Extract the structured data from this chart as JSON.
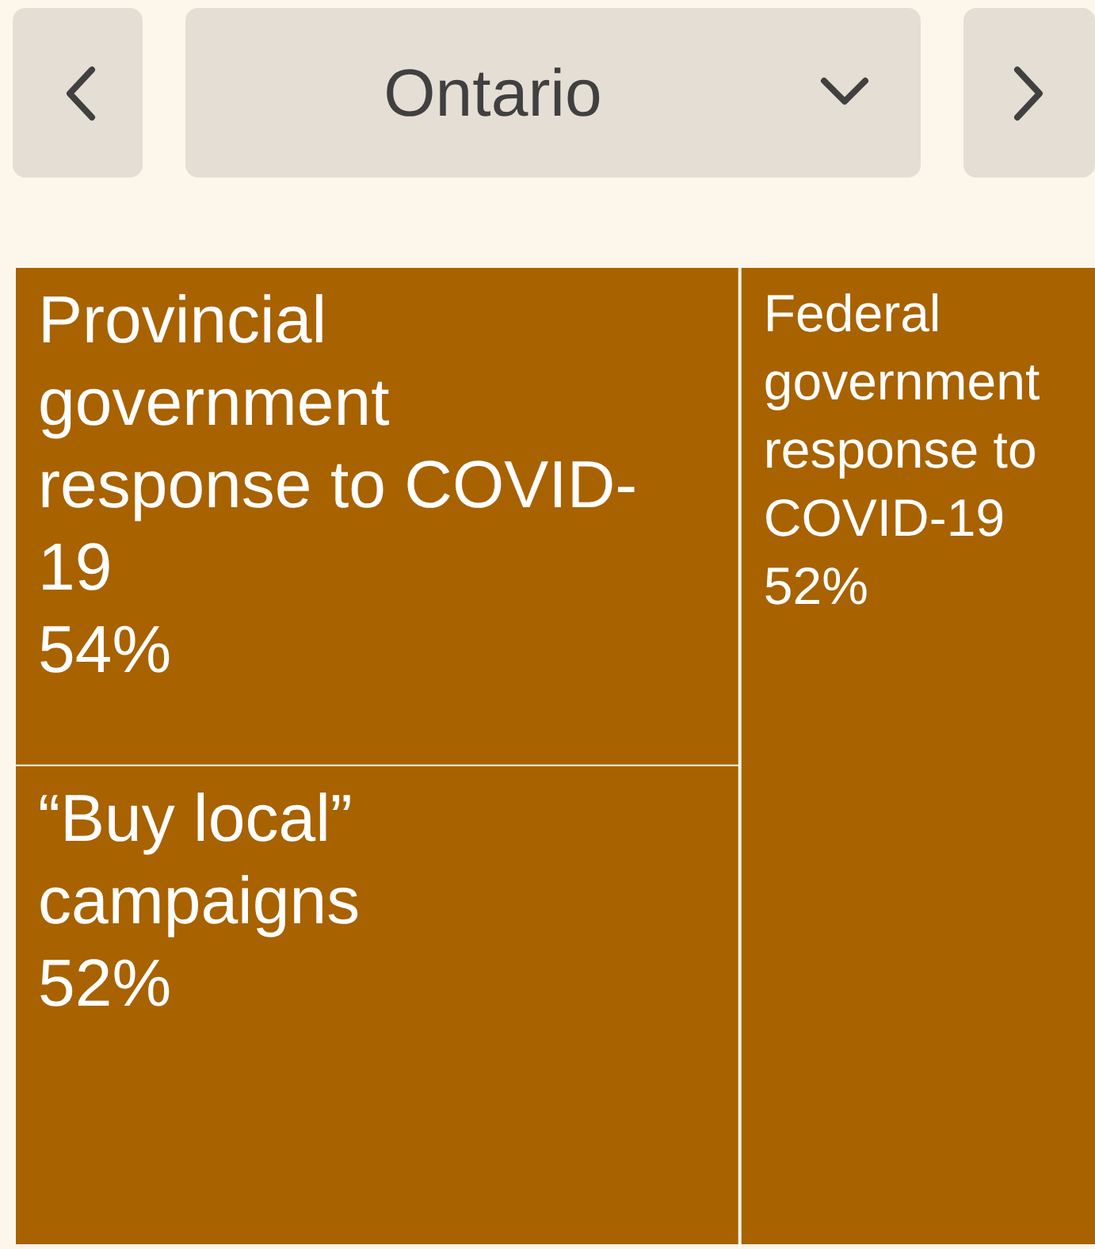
{
  "chart_data": {
    "type": "other",
    "title": "Ontario",
    "categories": [
      "Provincial government response to COVID-19",
      "“Buy local” campaigns",
      "Federal government response to COVID-19"
    ],
    "values": [
      54,
      52,
      52
    ],
    "value_labels": [
      "54%",
      "52%",
      "52%"
    ],
    "colors": [
      "#a86200",
      "#a86200",
      "#a86200"
    ]
  }
}
